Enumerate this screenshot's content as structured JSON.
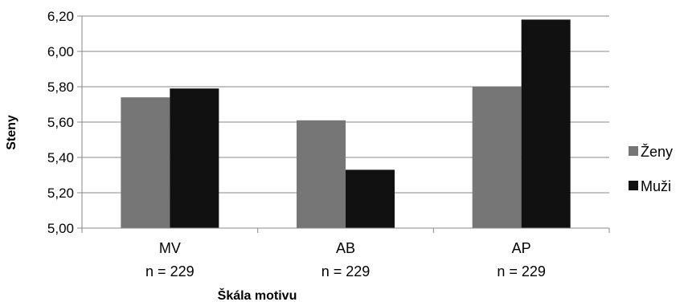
{
  "chart_data": {
    "type": "bar",
    "title": "",
    "xlabel": "Škála motivu",
    "ylabel": "Steny",
    "categories": [
      "MV",
      "AB",
      "AP"
    ],
    "category_sublabels": [
      "n = 229",
      "n = 229",
      "n = 229"
    ],
    "ylim": [
      5.0,
      6.2
    ],
    "yticks": [
      5.0,
      5.2,
      5.4,
      5.6,
      5.8,
      6.0,
      6.2
    ],
    "ytick_labels": [
      "5,00",
      "5,20",
      "5,40",
      "5,60",
      "5,80",
      "6,00",
      "6,20"
    ],
    "grid": true,
    "legend_position": "right",
    "series": [
      {
        "name": "Ženy",
        "color": "#767676",
        "values": [
          5.74,
          5.61,
          5.8
        ]
      },
      {
        "name": "Muži",
        "color": "#111111",
        "values": [
          5.79,
          5.33,
          6.18
        ]
      }
    ]
  }
}
